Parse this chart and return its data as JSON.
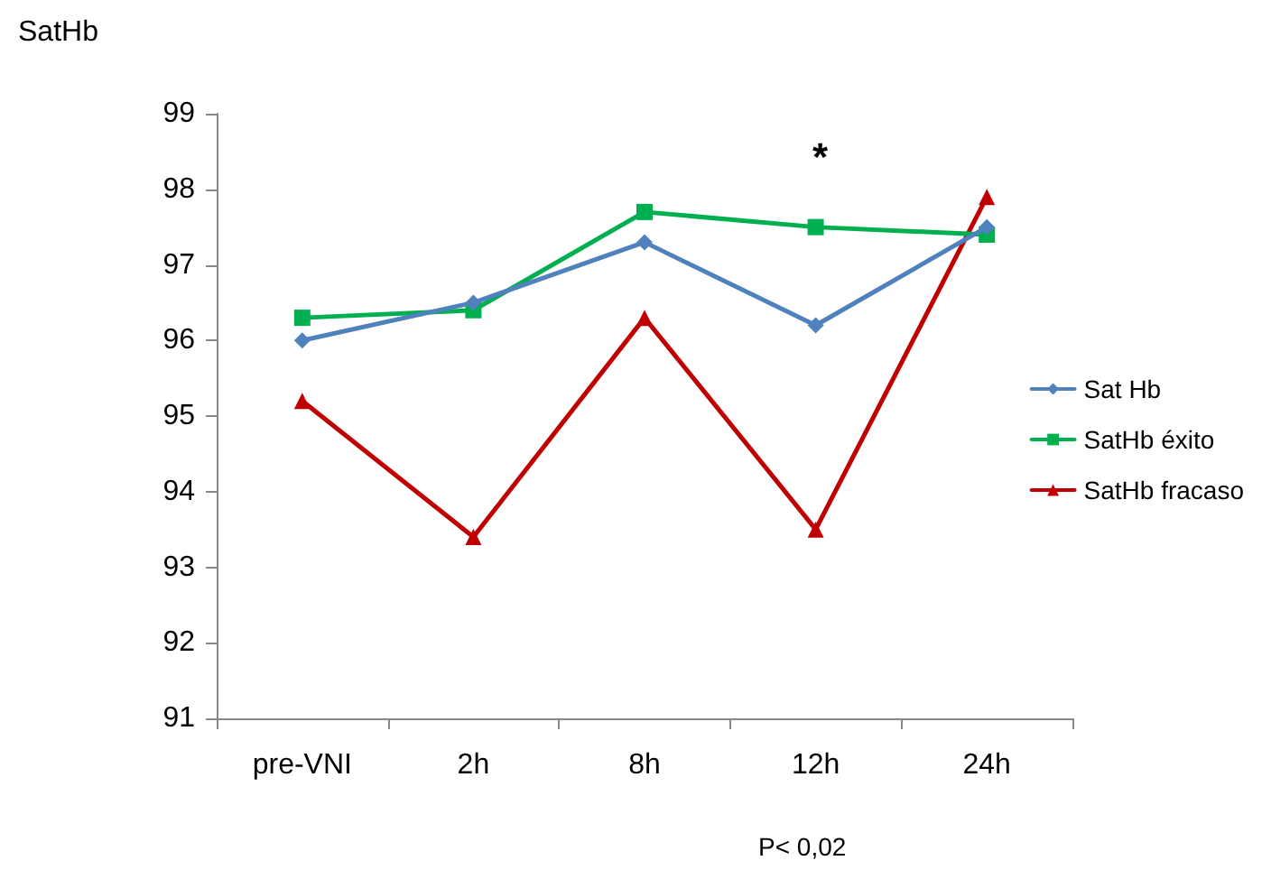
{
  "chart_data": {
    "type": "line",
    "ylabel": "SatHb",
    "categories": [
      "pre-VNI",
      "2h",
      "8h",
      "12h",
      "24h"
    ],
    "series": [
      {
        "name": "Sat Hb",
        "color": "#4f81bd",
        "marker": "diamond",
        "values": [
          96.0,
          96.5,
          97.3,
          96.2,
          97.5
        ]
      },
      {
        "name": "SatHb éxito",
        "color": "#00b050",
        "marker": "square",
        "values": [
          96.3,
          96.4,
          97.7,
          97.5,
          97.4
        ]
      },
      {
        "name": "SatHb fracaso",
        "color": "#c00000",
        "marker": "triangle",
        "values": [
          95.2,
          93.4,
          96.3,
          93.5,
          97.9
        ]
      }
    ],
    "ylim": [
      91,
      99
    ],
    "yticks": [
      91,
      92,
      93,
      94,
      95,
      96,
      97,
      98,
      99
    ],
    "grid": false,
    "legend": "right",
    "annotations": [
      "*",
      "P< 0,02"
    ]
  }
}
